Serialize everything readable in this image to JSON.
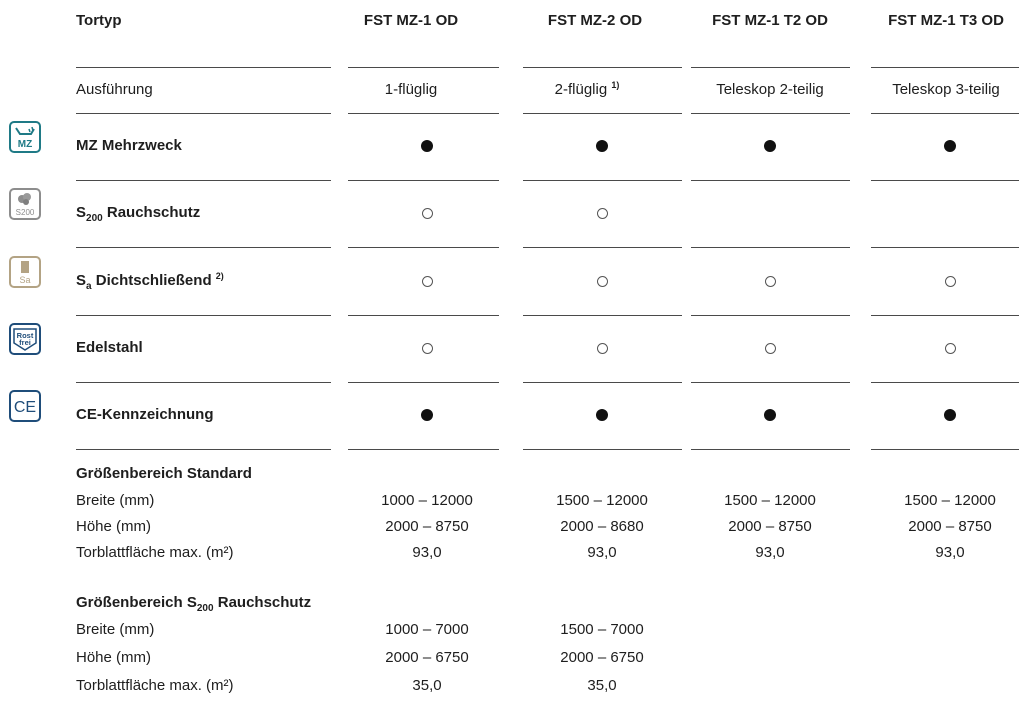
{
  "header": {
    "tortyp": "Tortyp",
    "columns": [
      "FST MZ-1 OD",
      "FST MZ-2 OD",
      "FST MZ-1 T2 OD",
      "FST MZ-1 T3 OD"
    ]
  },
  "ausfuehrung": {
    "label": "Ausführung",
    "values": [
      "1-flüglig",
      "2-flüglig",
      "Teleskop 2-teilig",
      "Teleskop 3-teilig"
    ],
    "footnote_col2": "1)"
  },
  "features": [
    {
      "icon": "multipurpose-icon",
      "icon_text": "MZ",
      "label": "MZ Mehrzweck",
      "marks": [
        "full",
        "full",
        "full",
        "full"
      ]
    },
    {
      "icon": "smoke-protection-icon",
      "icon_text": "S200",
      "label_main": "S",
      "label_sub": "200",
      "label_rest": " Rauchschutz",
      "marks": [
        "empty",
        "empty",
        "none",
        "none"
      ]
    },
    {
      "icon": "tight-closing-door-icon",
      "icon_text": "Sa",
      "label_main": "S",
      "label_sub": "a",
      "label_rest": " Dichtschließend",
      "label_sup": "2)",
      "marks": [
        "empty",
        "empty",
        "empty",
        "empty"
      ]
    },
    {
      "icon": "stainless-steel-icon",
      "icon_text": "Rost frei",
      "label": "Edelstahl",
      "marks": [
        "empty",
        "empty",
        "empty",
        "empty"
      ]
    },
    {
      "icon": "ce-mark-icon",
      "icon_text": "CE",
      "label": "CE-Kennzeichnung",
      "marks": [
        "full",
        "full",
        "full",
        "full"
      ]
    }
  ],
  "standard": {
    "title": "Größenbereich Standard",
    "rows": [
      {
        "label": "Breite (mm)",
        "values": [
          "1000 – 12000",
          "1500 – 12000",
          "1500 – 12000",
          "1500 – 12000"
        ]
      },
      {
        "label": "Höhe (mm)",
        "values": [
          "2000 – 8750",
          "2000 – 8680",
          "2000 – 8750",
          "2000 – 8750"
        ]
      },
      {
        "label": "Torblattfläche max. (m²)",
        "values": [
          "93,0",
          "93,0",
          "93,0",
          "93,0"
        ]
      }
    ]
  },
  "rauchschutz": {
    "title_main": "Größenbereich S",
    "title_sub": "200",
    "title_rest": " Rauchschutz",
    "rows": [
      {
        "label": "Breite (mm)",
        "values": [
          "1000 – 7000",
          "1500 – 7000"
        ]
      },
      {
        "label": "Höhe (mm)",
        "values": [
          "2000 – 6750",
          "2000 – 6750"
        ]
      },
      {
        "label": "Torblattfläche max. (m²)",
        "values": [
          "35,0",
          "35,0"
        ]
      }
    ]
  },
  "colors": {
    "icon_teal": "#1f7a86",
    "icon_gray": "#8d8d8d",
    "icon_tan": "#b3a384",
    "icon_navy": "#1f4d7a"
  }
}
